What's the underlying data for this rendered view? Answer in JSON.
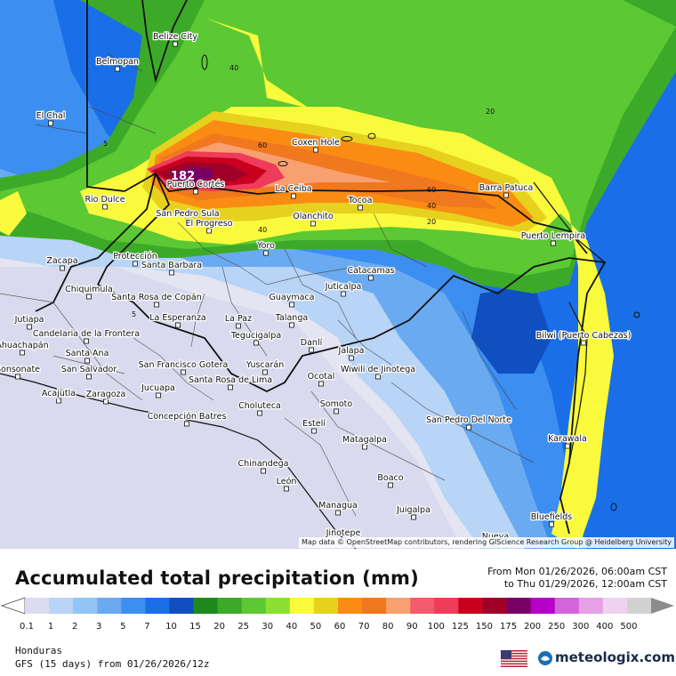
{
  "title": "Accumulated total precipitation (mm)",
  "period": {
    "from": "From Mon 01/26/2026, 06:00am CST",
    "to": "to Thu 01/29/2026, 12:00am CST"
  },
  "region": "Honduras",
  "model_run": "GFS (15 days) from 01/26/2026/12z",
  "brand": "meteologix.com",
  "attribution": "Map data © OpenStreetMap contributors, rendering GIScience Research Group @ Heidelberg University",
  "max_value": "182",
  "legend": {
    "levels": [
      "0.1",
      "1",
      "2",
      "3",
      "5",
      "7",
      "10",
      "15",
      "20",
      "25",
      "30",
      "40",
      "50",
      "60",
      "70",
      "80",
      "90",
      "100",
      "125",
      "150",
      "175",
      "200",
      "250",
      "300",
      "400",
      "500"
    ],
    "colors": [
      "#dcdcf0",
      "#b8d4f6",
      "#94c3f6",
      "#6aaaf0",
      "#3c8ef0",
      "#1a6fe8",
      "#0f4fc0",
      "#1e8a1e",
      "#3caa28",
      "#5cc834",
      "#8ce030",
      "#fafa3c",
      "#e6d21e",
      "#fa8c14",
      "#f0781e",
      "#f8a070",
      "#f55a6e",
      "#ee3c5a",
      "#c8001e",
      "#a00028",
      "#780064",
      "#b400c8",
      "#d264dc",
      "#e6a0e6",
      "#f0d2f0",
      "#d2d2d2"
    ]
  },
  "cities": [
    {
      "name": "Belize City"
    },
    {
      "name": "Belmopan"
    },
    {
      "name": "El Chal"
    },
    {
      "name": "Coxen Hole"
    },
    {
      "name": "Puerto Cortés"
    },
    {
      "name": "La Ceiba"
    },
    {
      "name": "Barra Patuca"
    },
    {
      "name": "Rio Dulce"
    },
    {
      "name": "San Pedro Sula"
    },
    {
      "name": "Tocoa"
    },
    {
      "name": "Olanchito"
    },
    {
      "name": "El Progreso"
    },
    {
      "name": "Puerto Lempira"
    },
    {
      "name": "Yoro"
    },
    {
      "name": "Zacapa"
    },
    {
      "name": "Protección"
    },
    {
      "name": "Santa Barbara"
    },
    {
      "name": "Catacamas"
    },
    {
      "name": "Chiquimula"
    },
    {
      "name": "Santa Rosa de Copán"
    },
    {
      "name": "Juticalpa"
    },
    {
      "name": "Guaymaca"
    },
    {
      "name": "Jutiapa"
    },
    {
      "name": "Candelaria de la Frontera"
    },
    {
      "name": "La Esperanza"
    },
    {
      "name": "La Paz"
    },
    {
      "name": "Talanga"
    },
    {
      "name": "Bilwi (Puerto Cabezas)"
    },
    {
      "name": "Ahuachapán"
    },
    {
      "name": "Santa Ana"
    },
    {
      "name": "Tegucigalpa"
    },
    {
      "name": "Danlí"
    },
    {
      "name": "Sonsonate"
    },
    {
      "name": "San Salvador"
    },
    {
      "name": "San Francisco Gotera"
    },
    {
      "name": "Yuscarán"
    },
    {
      "name": "Jalapa"
    },
    {
      "name": "Wiwilí de Jinotega"
    },
    {
      "name": "Acajutla"
    },
    {
      "name": "Zaragoza"
    },
    {
      "name": "Jucuapa"
    },
    {
      "name": "Santa Rosa de Lima"
    },
    {
      "name": "Ocotal"
    },
    {
      "name": "Somoto"
    },
    {
      "name": "Concepción Batres"
    },
    {
      "name": "Choluteca"
    },
    {
      "name": "Estelí"
    },
    {
      "name": "San Pedro Del Norte"
    },
    {
      "name": "Matagalpa"
    },
    {
      "name": "Karawala"
    },
    {
      "name": "Chinandega"
    },
    {
      "name": "León"
    },
    {
      "name": "Boaco"
    },
    {
      "name": "Managua"
    },
    {
      "name": "Juigalpa"
    },
    {
      "name": "Bluefields"
    },
    {
      "name": "Jinotepe"
    },
    {
      "name": "Nueva"
    }
  ],
  "contour_labels": [
    "40",
    "20",
    "5",
    "60",
    "60",
    "40",
    "20",
    "40",
    "5"
  ]
}
